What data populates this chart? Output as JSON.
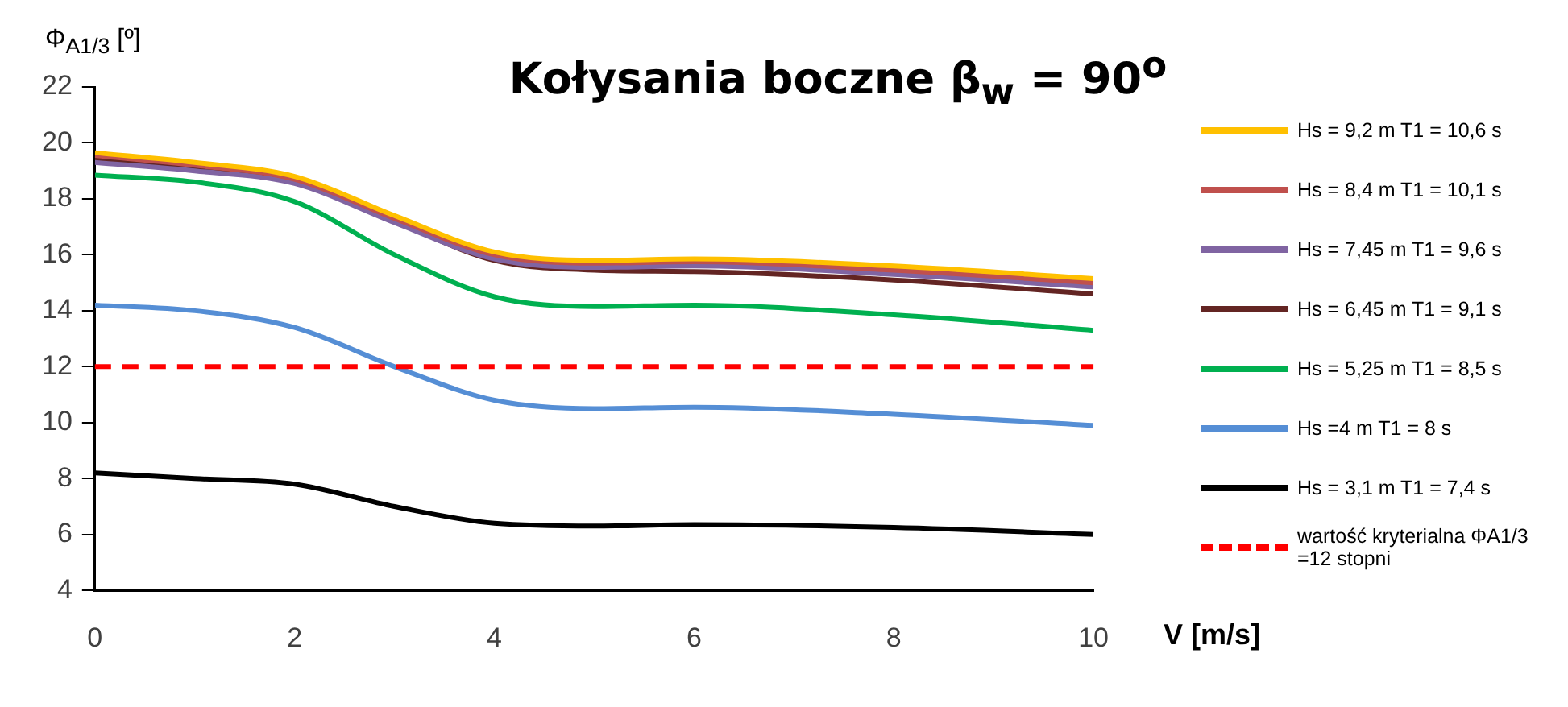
{
  "chart_data": {
    "type": "line",
    "title": "Kołysania boczne β$_{w}$ = 90$^{o}$",
    "xlabel": "V [m/s]",
    "ylabel": "Φ$_{A1/3}$ [º]",
    "x": [
      0,
      1,
      2,
      3,
      4,
      5,
      6,
      8,
      10
    ],
    "xlim": [
      0,
      10
    ],
    "xticks": [
      0,
      2,
      4,
      6,
      8,
      10
    ],
    "ylim": [
      4,
      22
    ],
    "yticks": [
      4,
      6,
      8,
      10,
      12,
      14,
      16,
      18,
      20,
      22
    ],
    "grid": false,
    "legend": "right",
    "marker": "none",
    "line_style": "solid",
    "series": [
      {
        "name": "Hs = 9,2 m T1 = 10,6 s",
        "color": "#ffc000",
        "values": [
          19.65,
          19.3,
          18.8,
          17.4,
          16.1,
          15.8,
          15.85,
          15.6,
          15.15
        ]
      },
      {
        "name": "Hs = 8,4 m T1 = 10,1 s",
        "color": "#c0504d",
        "values": [
          19.55,
          19.2,
          18.7,
          17.3,
          16.0,
          15.7,
          15.75,
          15.45,
          15.0
        ]
      },
      {
        "name": "Hs = 7,45 m T1 = 9,6 s",
        "color": "#8064a2",
        "values": [
          19.3,
          19.0,
          18.55,
          17.15,
          15.85,
          15.55,
          15.6,
          15.3,
          14.85
        ]
      },
      {
        "name": "Hs = 6,45 m T1 = 9,1 s",
        "color": "#632523",
        "values": [
          19.45,
          19.1,
          18.6,
          17.2,
          15.8,
          15.45,
          15.4,
          15.1,
          14.6
        ]
      },
      {
        "name": "Hs = 5,25 m T1 = 8,5 s",
        "color": "#00b050",
        "values": [
          18.85,
          18.6,
          17.9,
          16.0,
          14.5,
          14.15,
          14.2,
          13.85,
          13.3
        ]
      },
      {
        "name": "Hs =4 m T1 = 8 s",
        "color": "#558ed5",
        "values": [
          14.2,
          14.0,
          13.4,
          12.0,
          10.8,
          10.5,
          10.55,
          10.3,
          9.9
        ]
      },
      {
        "name": "Hs = 3,1 m T1 = 7,4 s",
        "color": "#000000",
        "values": [
          8.2,
          8.0,
          7.8,
          7.0,
          6.4,
          6.3,
          6.35,
          6.25,
          6.0
        ]
      }
    ],
    "ref_lines": [
      {
        "axis": "y",
        "value": 12,
        "label": "wartość kryterialna ΦA1/3 =12 stopni",
        "color": "#ff0000",
        "line_style": "dashed"
      }
    ]
  }
}
